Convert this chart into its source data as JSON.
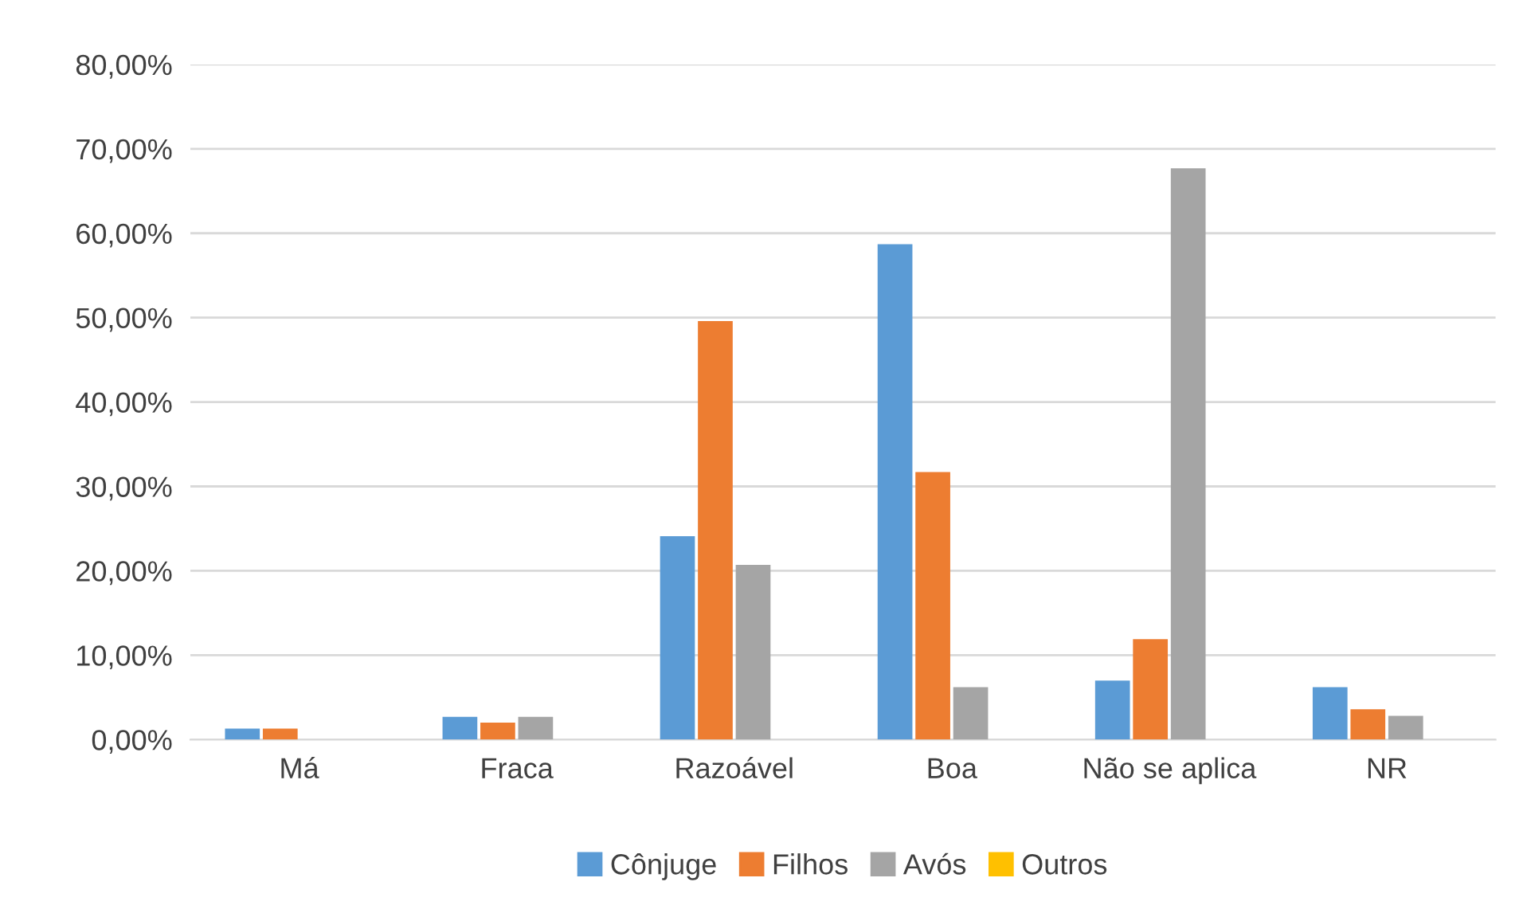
{
  "chart_data": {
    "type": "bar",
    "categories": [
      "Má",
      "Fraca",
      "Razoável",
      "Boa",
      "Não se aplica",
      "NR"
    ],
    "series": [
      {
        "name": "Cônjuge",
        "color": "#5b9bd5",
        "values": [
          1.3,
          2.7,
          24.1,
          58.7,
          7.0,
          6.2
        ]
      },
      {
        "name": "Filhos",
        "color": "#ed7d31",
        "values": [
          1.3,
          2.0,
          49.6,
          31.7,
          11.9,
          3.6
        ]
      },
      {
        "name": "Avós",
        "color": "#a5a5a5",
        "values": [
          0,
          2.7,
          20.7,
          6.2,
          67.7,
          2.8
        ]
      },
      {
        "name": "Outros",
        "color": "#ffc000",
        "values": [
          0,
          0,
          0,
          0,
          0,
          0
        ]
      }
    ],
    "ylim": [
      0,
      80
    ],
    "yticks": [
      {
        "value": 0,
        "label": "0,00%"
      },
      {
        "value": 10,
        "label": "10,00%"
      },
      {
        "value": 20,
        "label": "20,00%"
      },
      {
        "value": 30,
        "label": "30,00%"
      },
      {
        "value": 40,
        "label": "40,00%"
      },
      {
        "value": 50,
        "label": "50,00%"
      },
      {
        "value": 60,
        "label": "60,00%"
      },
      {
        "value": 70,
        "label": "70,00%"
      },
      {
        "value": 80,
        "label": "80,00%"
      }
    ],
    "grid": "y",
    "legend": "bottom"
  }
}
